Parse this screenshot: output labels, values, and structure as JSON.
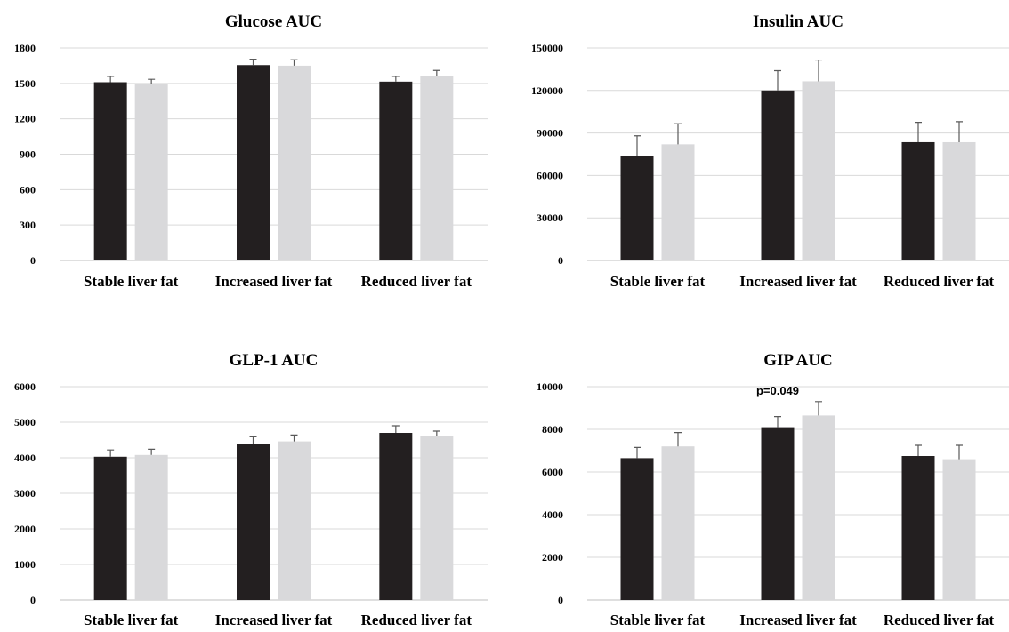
{
  "colors": {
    "series1": "#231f20",
    "series2": "#d9d9db",
    "error_bar": "#595959",
    "grid": "#d9d9d9"
  },
  "chart_data": [
    {
      "type": "bar",
      "title": "Glucose AUC",
      "categories": [
        "Stable liver fat",
        "Increased liver fat",
        "Reduced liver fat"
      ],
      "series": [
        {
          "values": [
            1510,
            1655,
            1515
          ],
          "errors": [
            50,
            50,
            45
          ]
        },
        {
          "values": [
            1495,
            1650,
            1565
          ],
          "errors": [
            40,
            50,
            45
          ]
        }
      ],
      "ylim": [
        0,
        1800
      ],
      "yticks": [
        "0",
        "300",
        "600",
        "900",
        "1200",
        "1500",
        "1800"
      ],
      "grid": true,
      "annotations": []
    },
    {
      "type": "bar",
      "title": "Insulin AUC",
      "categories": [
        "Stable liver fat",
        "Increased liver fat",
        "Reduced liver fat"
      ],
      "series": [
        {
          "values": [
            74000,
            120000,
            83500
          ],
          "errors": [
            14000,
            14000,
            14000
          ]
        },
        {
          "values": [
            82000,
            126500,
            83500
          ],
          "errors": [
            14500,
            15000,
            14500
          ]
        }
      ],
      "ylim": [
        0,
        150000
      ],
      "yticks": [
        "0",
        "30000",
        "60000",
        "90000",
        "120000",
        "150000"
      ],
      "grid": true,
      "annotations": []
    },
    {
      "type": "bar",
      "title": "GLP-1 AUC",
      "categories": [
        "Stable liver fat",
        "Increased liver fat",
        "Reduced liver fat"
      ],
      "series": [
        {
          "values": [
            4030,
            4390,
            4700
          ],
          "errors": [
            190,
            200,
            200
          ]
        },
        {
          "values": [
            4080,
            4460,
            4600
          ],
          "errors": [
            160,
            180,
            150
          ]
        }
      ],
      "ylim": [
        0,
        6000
      ],
      "yticks": [
        "0",
        "1000",
        "2000",
        "3000",
        "4000",
        "5000",
        "6000"
      ],
      "grid": true,
      "annotations": []
    },
    {
      "type": "bar",
      "title": "GIP AUC",
      "categories": [
        "Stable liver fat",
        "Increased liver fat",
        "Reduced liver fat"
      ],
      "series": [
        {
          "values": [
            6650,
            8100,
            6750
          ],
          "errors": [
            500,
            500,
            500
          ]
        },
        {
          "values": [
            7200,
            8650,
            6600
          ],
          "errors": [
            650,
            650,
            650
          ]
        }
      ],
      "ylim": [
        0,
        10000
      ],
      "yticks": [
        "0",
        "2000",
        "4000",
        "6000",
        "8000",
        "10000"
      ],
      "grid": true,
      "annotations": [
        {
          "text": "p=0.049",
          "category": 1
        }
      ]
    }
  ]
}
